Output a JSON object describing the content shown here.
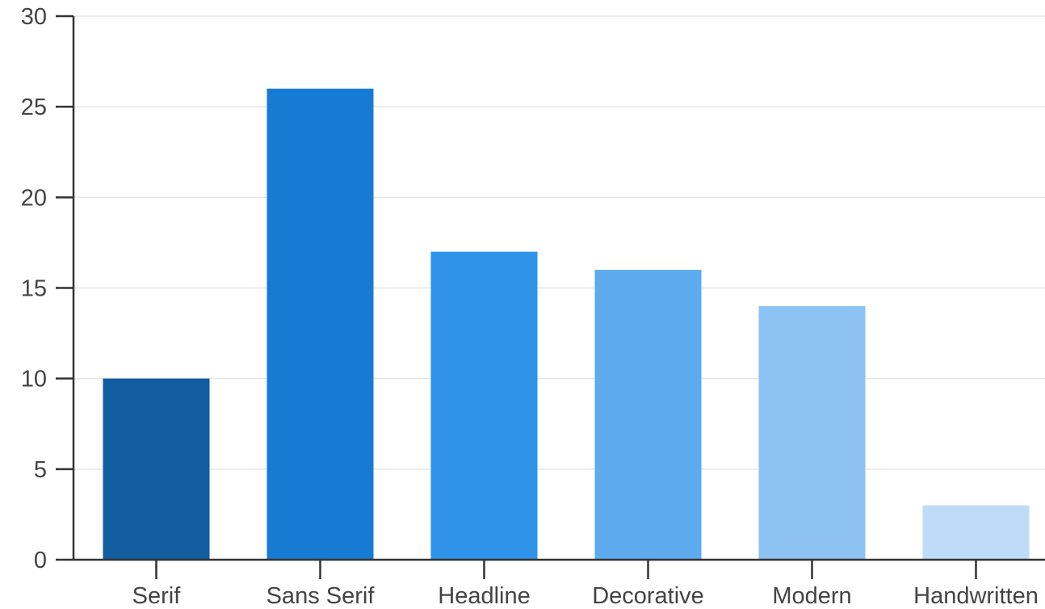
{
  "chart_data": {
    "type": "bar",
    "categories": [
      "Serif",
      "Sans Serif",
      "Headline",
      "Decorative",
      "Modern",
      "Handwritten"
    ],
    "values": [
      10,
      26,
      17,
      16,
      14,
      3
    ],
    "colors": [
      "#115da0",
      "#177bd3",
      "#2f93ea",
      "#5eaaef",
      "#8dc3f3",
      "#bedcf8"
    ],
    "ylim": [
      0,
      30
    ],
    "yticks": [
      0,
      5,
      10,
      15,
      20,
      25,
      30
    ],
    "grid": true,
    "title": "",
    "xlabel": "",
    "ylabel": ""
  }
}
